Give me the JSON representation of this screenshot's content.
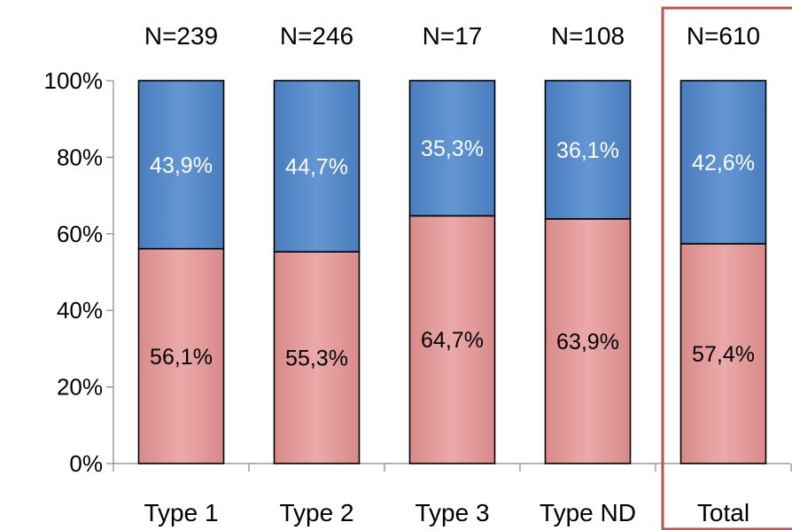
{
  "chart_data": {
    "type": "bar",
    "stacked": true,
    "categories": [
      "Type 1",
      "Type 2",
      "Type 3",
      "Type ND",
      "Total"
    ],
    "counts": [
      "N=239",
      "N=246",
      "N=17",
      "N=108",
      "N=610"
    ],
    "series": [
      {
        "color": "#E6A1A1",
        "values": [
          56.1,
          55.3,
          64.7,
          63.9,
          57.4
        ],
        "labels": [
          "56,1%",
          "55,3%",
          "64,7%",
          "63,9%",
          "57,4%"
        ]
      },
      {
        "color": "#5A8DCB",
        "values": [
          43.9,
          44.7,
          35.3,
          36.1,
          42.6
        ],
        "labels": [
          "43,9%",
          "44,7%",
          "35,3%",
          "36,1%",
          "42,6%"
        ]
      }
    ],
    "yticks": [
      "0%",
      "20%",
      "40%",
      "60%",
      "80%",
      "100%"
    ],
    "ylim": [
      0,
      100
    ],
    "highlight_category": "Total",
    "highlight_color": "#C0504D",
    "grid": false
  }
}
